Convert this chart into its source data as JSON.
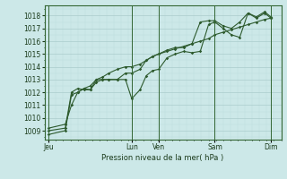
{
  "xlabel": "Pression niveau de la mer( hPa )",
  "bg_color": "#cce8e8",
  "grid_major_color": "#aacccc",
  "grid_minor_color": "#bbdddd",
  "line_color": "#2d5a2d",
  "ylim": [
    1008.3,
    1018.8
  ],
  "yticks": [
    1009,
    1010,
    1011,
    1012,
    1013,
    1014,
    1015,
    1016,
    1017,
    1018
  ],
  "x_day_labels": [
    "Jeu",
    "Lun",
    "Ven",
    "Sam",
    "Dim"
  ],
  "x_day_positions": [
    0,
    40,
    53,
    80,
    107
  ],
  "x_vline_positions": [
    0,
    40,
    53,
    80,
    107
  ],
  "xlim": [
    -2,
    112
  ],
  "series1_x": [
    0,
    8,
    11,
    14,
    17,
    20,
    23,
    26,
    29,
    33,
    37,
    40,
    44,
    47,
    50,
    53,
    57,
    61,
    65,
    69,
    73,
    77,
    80,
    84,
    88,
    92,
    96,
    100,
    104,
    107
  ],
  "series1_y": [
    1008.7,
    1009.0,
    1011.8,
    1012.0,
    1012.3,
    1012.2,
    1012.8,
    1013.0,
    1013.0,
    1013.0,
    1013.0,
    1011.5,
    1012.2,
    1013.3,
    1013.7,
    1013.8,
    1014.7,
    1015.0,
    1015.2,
    1015.1,
    1015.2,
    1017.3,
    1017.5,
    1017.0,
    1016.5,
    1016.3,
    1018.2,
    1017.8,
    1018.2,
    1017.8
  ],
  "series2_x": [
    0,
    8,
    11,
    14,
    17,
    20,
    23,
    26,
    29,
    33,
    37,
    40,
    44,
    47,
    50,
    53,
    57,
    61,
    65,
    69,
    73,
    77,
    80,
    84,
    88,
    92,
    96,
    100,
    104,
    107
  ],
  "series2_y": [
    1009.0,
    1009.2,
    1012.0,
    1012.3,
    1012.2,
    1012.2,
    1013.0,
    1013.0,
    1013.0,
    1013.0,
    1013.5,
    1013.5,
    1013.8,
    1014.5,
    1014.8,
    1015.0,
    1015.3,
    1015.5,
    1015.5,
    1015.8,
    1017.5,
    1017.6,
    1017.6,
    1017.2,
    1017.0,
    1017.5,
    1018.2,
    1017.9,
    1018.3,
    1017.9
  ],
  "series3_x": [
    0,
    8,
    11,
    14,
    17,
    20,
    23,
    26,
    29,
    33,
    37,
    40,
    44,
    47,
    50,
    53,
    57,
    61,
    65,
    69,
    73,
    77,
    80,
    84,
    88,
    92,
    96,
    100,
    104,
    107
  ],
  "series3_y": [
    1009.2,
    1009.5,
    1011.0,
    1012.0,
    1012.3,
    1012.5,
    1013.0,
    1013.2,
    1013.5,
    1013.8,
    1014.0,
    1014.0,
    1014.2,
    1014.5,
    1014.8,
    1015.0,
    1015.2,
    1015.4,
    1015.6,
    1015.8,
    1016.0,
    1016.2,
    1016.5,
    1016.7,
    1016.9,
    1017.1,
    1017.3,
    1017.5,
    1017.7,
    1017.8
  ]
}
